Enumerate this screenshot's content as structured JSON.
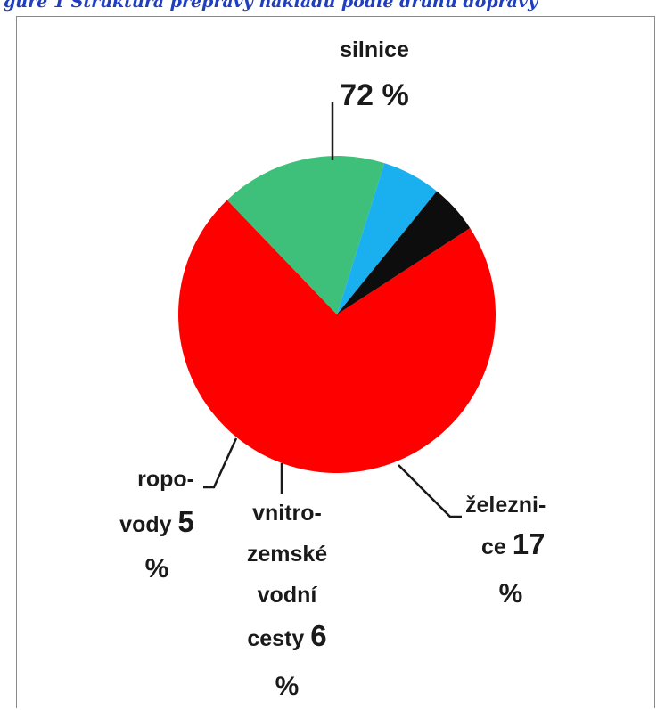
{
  "caption": "gure 1  Struktura přepravy nákladu podle druhu dopravy",
  "chart_data": {
    "type": "pie",
    "title": "",
    "slices": [
      {
        "label": "silnice",
        "value": 72,
        "value_text": "72 %",
        "color": "#ff0000"
      },
      {
        "label": "železnice",
        "value": 17,
        "value_text": "17 %",
        "color": "#3fc07a"
      },
      {
        "label": "vnitrozemské vodní cesty",
        "value": 6,
        "value_text": "6 %",
        "color": "#1ab0f0"
      },
      {
        "label": "ropovody",
        "value": 5,
        "value_text": "5 %",
        "color": "#0d0d0d"
      }
    ],
    "legend": "none",
    "data_labels": "outside-with-leader-lines"
  },
  "labels": {
    "silnice": {
      "line1": "silnice",
      "line2": "72 %"
    },
    "zeleznice": {
      "line1": "železni-",
      "line2a": "ce ",
      "line2b": "17",
      "line3": "%"
    },
    "vodni": {
      "line1": "vnitro-",
      "line2": "zemské",
      "line3": "vodní",
      "line4a": "cesty ",
      "line4b": "6",
      "line5": "%"
    },
    "ropovody": {
      "line1": "ropo-",
      "line2a": "vody ",
      "line2b": "5",
      "line3": "%"
    }
  }
}
